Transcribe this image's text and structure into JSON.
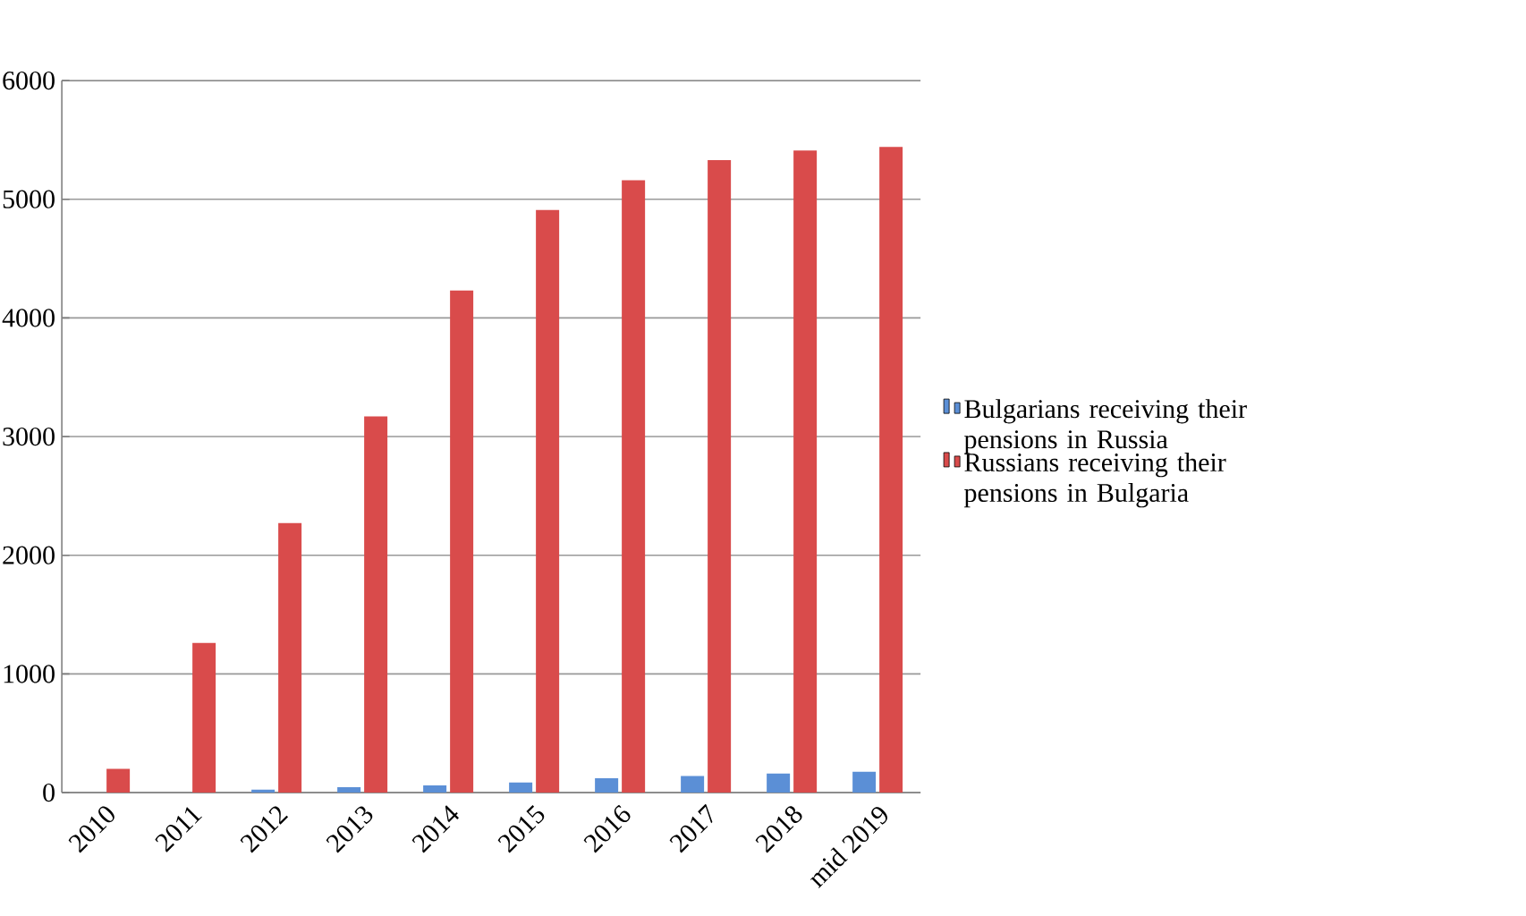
{
  "chart_data": {
    "type": "bar",
    "categories": [
      "2010",
      "2011",
      "2012",
      "2013",
      "2014",
      "2015",
      "2016",
      "2017",
      "2018",
      "mid 2019"
    ],
    "series": [
      {
        "name": "Bulgarians receiving their pensions in Russia",
        "color": "#5b8fd6",
        "values": [
          0,
          0,
          25,
          45,
          60,
          85,
          120,
          140,
          160,
          175
        ]
      },
      {
        "name": "Russians receiving their pensions in Bulgaria",
        "color": "#d94b4b",
        "values": [
          200,
          1260,
          2270,
          3170,
          4230,
          4910,
          5160,
          5330,
          5410,
          5440
        ]
      }
    ],
    "ylim": [
      0,
      6000
    ],
    "yticks": [
      0,
      1000,
      2000,
      3000,
      4000,
      5000,
      6000
    ],
    "grid": "y",
    "legend": "right"
  }
}
